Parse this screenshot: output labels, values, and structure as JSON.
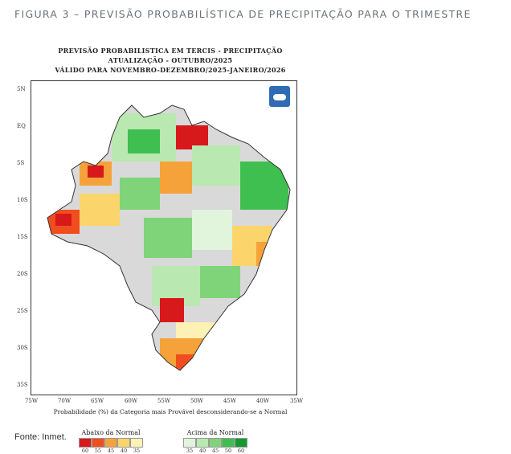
{
  "figure": {
    "caption": "FIGURA 3 – PREVISÃO PROBABILÍSTICA DE PRECIPITAÇÃO PARA O TRIMESTRE",
    "source": "Fonte: Inmet."
  },
  "map": {
    "title_line1": "PREVISÃO PROBABILISTICA EM TERCIS - PRECIPITAÇÃO",
    "title_line2": "ATUALIZAÇÃO - OUTUBRO/2025",
    "title_line3": "VÁLIDO PARA NOVEMBRO-DEZEMBRO/2025-JANEIRO/2026",
    "lat_labels": [
      "5N",
      "EQ",
      "5S",
      "10S",
      "15S",
      "20S",
      "25S",
      "30S",
      "35S"
    ],
    "lon_labels": [
      "75W",
      "70W",
      "65W",
      "60W",
      "55W",
      "50W",
      "45W",
      "40W",
      "35W"
    ],
    "footnote": "Probabilidade (%) da Categoria mais Provável desconsiderando-se a Normal",
    "legend_below": {
      "title": "Abaixo da Normal",
      "colors": [
        "#d7191c",
        "#f04e1e",
        "#f6a23a",
        "#fbd56b",
        "#fdf1b5"
      ],
      "ticks": [
        "60",
        "55",
        "45",
        "40",
        "35"
      ]
    },
    "legend_above": {
      "title": "Acima da Normal",
      "colors": [
        "#e0f5dc",
        "#b9e8b0",
        "#7fd47a",
        "#3fbf4f",
        "#139a2e"
      ],
      "ticks": [
        "35",
        "40",
        "45",
        "50",
        "60"
      ]
    },
    "colors": {
      "normal_gray": "#d9d9d9",
      "border": "#333333"
    }
  }
}
